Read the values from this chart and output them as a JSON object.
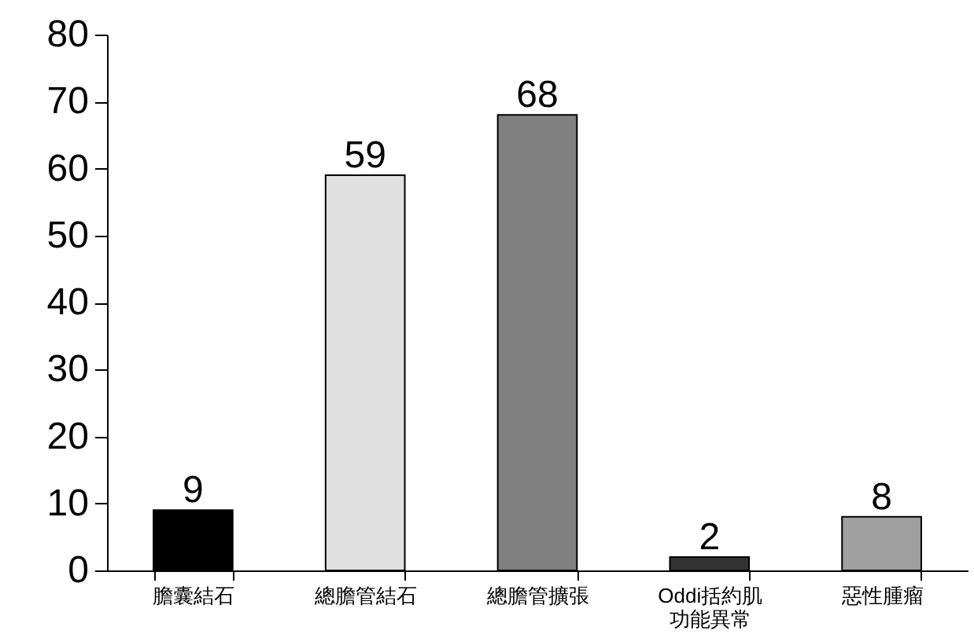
{
  "chart_data": {
    "type": "bar",
    "categories": [
      "膽囊結石",
      "總膽管結石",
      "總膽管擴張",
      "Oddi括約肌功能異常",
      "惡性腫瘤"
    ],
    "values": [
      9,
      59,
      68,
      2,
      8
    ],
    "colors": [
      "#000000",
      "#e0e0e0",
      "#808080",
      "#333333",
      "#a0a0a0"
    ],
    "ylim": [
      0,
      80
    ],
    "yticks": [
      0,
      10,
      20,
      30,
      40,
      50,
      60,
      70,
      80
    ],
    "data_labels": true,
    "grid": false,
    "legend": false
  }
}
